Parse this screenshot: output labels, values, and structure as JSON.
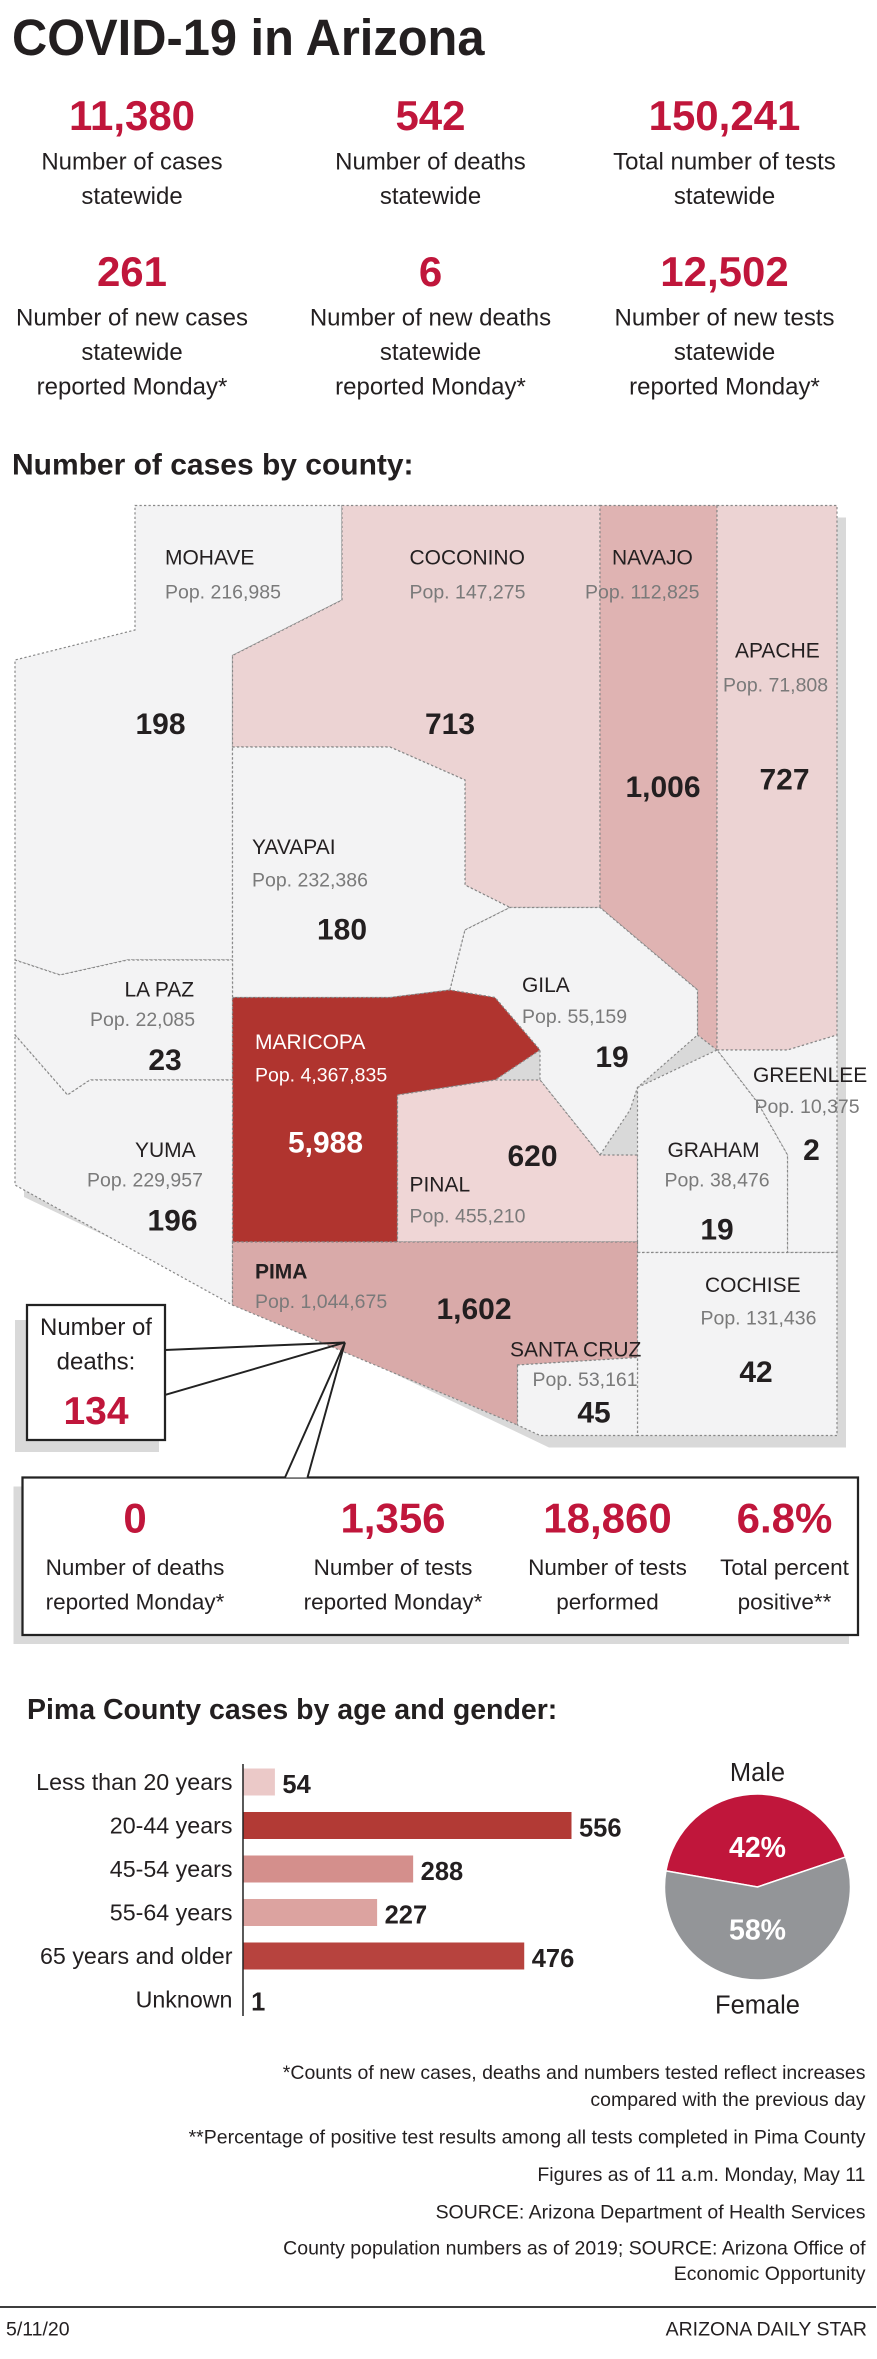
{
  "title": "COVID-19 in Arizona",
  "statewide": [
    {
      "value": "11,380",
      "label": [
        "Number of cases",
        "statewide"
      ]
    },
    {
      "value": "542",
      "label": [
        "Number of deaths",
        "statewide"
      ]
    },
    {
      "value": "150,241",
      "label": [
        "Total number of tests",
        "statewide"
      ]
    },
    {
      "value": "261",
      "label": [
        "Number of new cases",
        "statewide",
        "reported Monday*"
      ]
    },
    {
      "value": "6",
      "label": [
        "Number of new deaths",
        "statewide",
        "reported Monday*"
      ]
    },
    {
      "value": "12,502",
      "label": [
        "Number of new tests",
        "statewide",
        "reported Monday*"
      ]
    }
  ],
  "county_heading": "Number of cases by county:",
  "counties": [
    {
      "name": "MOHAVE",
      "population": "Pop. 216,985",
      "cases": "198",
      "color": "#f3f3f4"
    },
    {
      "name": "COCONINO",
      "population": "Pop. 147,275",
      "cases": "713",
      "color": "#ecd3d3"
    },
    {
      "name": "NAVAJO",
      "population": "Pop. 112,825",
      "cases": "1,006",
      "color": "#dfb3b2"
    },
    {
      "name": "APACHE",
      "population": "Pop. 71,808",
      "cases": "727",
      "color": "#ecd3d3"
    },
    {
      "name": "YAVAPAI",
      "population": "Pop. 232,386",
      "cases": "180",
      "color": "#f3f3f4"
    },
    {
      "name": "LA PAZ",
      "population": "Pop. 22,085",
      "cases": "23",
      "color": "#f3f3f4"
    },
    {
      "name": "GILA",
      "population": "Pop. 55,159",
      "cases": "19",
      "color": "#f3f3f4"
    },
    {
      "name": "MARICOPA",
      "population": "Pop. 4,367,835",
      "cases": "5,988",
      "color": "#b0342f"
    },
    {
      "name": "GREENLEE",
      "population": "Pop. 10,375",
      "cases": "2",
      "color": "#f3f3f4"
    },
    {
      "name": "YUMA",
      "population": "Pop. 229,957",
      "cases": "196",
      "color": "#f3f3f4"
    },
    {
      "name": "PINAL",
      "population": "Pop. 455,210",
      "cases": "620",
      "color": "#efd6d6"
    },
    {
      "name": "GRAHAM",
      "population": "Pop. 38,476",
      "cases": "19",
      "color": "#f3f3f4"
    },
    {
      "name": "PIMA",
      "population": "Pop. 1,044,675",
      "cases": "1,602",
      "color": "#d9aaa9"
    },
    {
      "name": "COCHISE",
      "population": "Pop. 131,436",
      "cases": "42",
      "color": "#f3f3f4"
    },
    {
      "name": "SANTA CRUZ",
      "population": "Pop. 53,161",
      "cases": "45",
      "color": "#f3f3f4"
    }
  ],
  "pima_deaths": {
    "label": [
      "Number of",
      "deaths:"
    ],
    "value": "134"
  },
  "pima_stats": [
    {
      "value": "0",
      "label": [
        "Number of deaths",
        "reported Monday*"
      ]
    },
    {
      "value": "1,356",
      "label": [
        "Number of tests",
        "reported Monday*"
      ]
    },
    {
      "value": "18,860",
      "label": [
        "Number of tests",
        "performed"
      ]
    },
    {
      "value": "6.8%",
      "label": [
        "Total percent",
        "positive**"
      ]
    }
  ],
  "age_gender_heading": "Pima County cases by age and gender:",
  "chart_data": [
    {
      "type": "bar",
      "categories": [
        "Less than 20 years",
        "20-44 years",
        "45-54 years",
        "55-64 years",
        "65 years and older",
        "Unknown"
      ],
      "values": [
        54,
        556,
        288,
        227,
        476,
        1
      ],
      "colors": [
        "#ebc9c8",
        "#b23a35",
        "#d48f8c",
        "#dca3a0",
        "#b7433e",
        "#dddddd"
      ]
    },
    {
      "type": "pie",
      "categories": [
        "Male",
        "Female"
      ],
      "values": [
        42,
        58
      ],
      "value_labels": [
        "42%",
        "58%"
      ],
      "colors": [
        "#c0163b",
        "#939598"
      ]
    }
  ],
  "notes": [
    "*Counts of new cases, deaths and numbers tested reflect increases",
    "compared with the previous day",
    "**Percentage of positive test results among all tests completed in Pima County",
    "Figures as of 11 a.m. Monday, May 11",
    "SOURCE: Arizona Department of Health Services",
    "County population numbers as of 2019; SOURCE: Arizona Office of",
    "Economic Opportunity"
  ],
  "footer": {
    "date": "5/11/20",
    "source": "ARIZONA DAILY STAR"
  }
}
